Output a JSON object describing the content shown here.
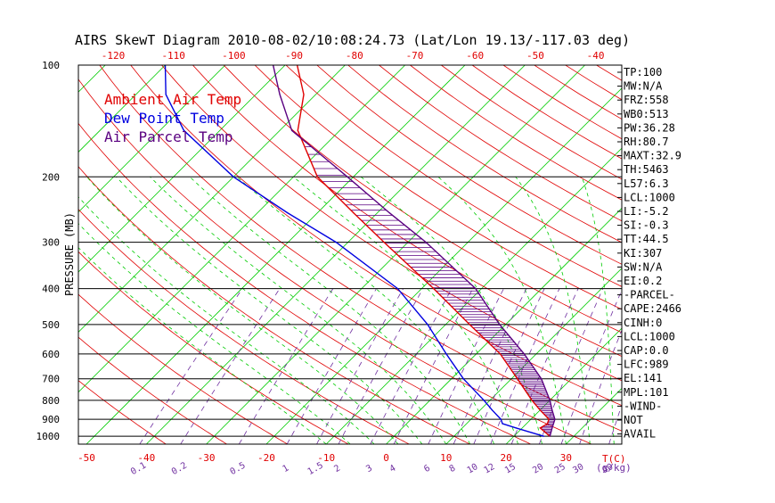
{
  "chart_data": {
    "type": "skew-t",
    "title": "AIRS SkewT Diagram 2010-08-02/10:08:24.73 (Lat/Lon 19.13/-117.03 deg)",
    "ylabel": "PRESSURE (MB)",
    "top_temp_ticks": [
      "-120",
      "-110",
      "-100",
      "-90",
      "-80",
      "-70",
      "-60",
      "-50",
      "-40"
    ],
    "bottom_temp_ticks": [
      "-50",
      "-40",
      "-30",
      "-20",
      "-10",
      "0",
      "10",
      "20",
      "30"
    ],
    "bottom_temp_unit": "T(C)",
    "mixing_ratio_ticks": [
      "0.1",
      "0.2",
      "0.5",
      "1",
      "1.5",
      "2",
      "3",
      "4",
      "6",
      "8",
      "10",
      "12",
      "15",
      "20",
      "25",
      "30",
      "40"
    ],
    "mixing_ratio_unit": "(g/kg)",
    "pressure_ticks": [
      100,
      200,
      300,
      400,
      500,
      600,
      700,
      800,
      900,
      1000
    ],
    "legend": [
      {
        "name": "Ambient Air Temp",
        "color": "#e00000"
      },
      {
        "name": "Dew Point Temp",
        "color": "#0000e0"
      },
      {
        "name": "Air Parcel Temp",
        "color": "#5a0080"
      }
    ],
    "series": [
      {
        "name": "Ambient Air Temp",
        "color": "#e00000",
        "points": [
          [
            1000,
            26
          ],
          [
            950,
            23
          ],
          [
            925,
            23.5
          ],
          [
            900,
            23
          ],
          [
            850,
            20
          ],
          [
            800,
            17
          ],
          [
            700,
            11
          ],
          [
            600,
            4
          ],
          [
            500,
            -6
          ],
          [
            400,
            -18
          ],
          [
            300,
            -34
          ],
          [
            250,
            -44
          ],
          [
            200,
            -56
          ],
          [
            150,
            -67
          ],
          [
            120,
            -72
          ],
          [
            100,
            -78
          ]
        ]
      },
      {
        "name": "Dew Point Temp",
        "color": "#0000e0",
        "points": [
          [
            1000,
            25
          ],
          [
            950,
            19
          ],
          [
            925,
            16
          ],
          [
            900,
            15
          ],
          [
            850,
            12
          ],
          [
            800,
            9
          ],
          [
            700,
            2
          ],
          [
            600,
            -5
          ],
          [
            500,
            -13
          ],
          [
            400,
            -24
          ],
          [
            300,
            -42
          ],
          [
            250,
            -55
          ],
          [
            200,
            -70
          ],
          [
            150,
            -86
          ],
          [
            120,
            -95
          ],
          [
            100,
            -100
          ]
        ]
      },
      {
        "name": "Air Parcel Temp",
        "color": "#5a0080",
        "points": [
          [
            1000,
            26
          ],
          [
            950,
            25
          ],
          [
            900,
            24
          ],
          [
            850,
            22
          ],
          [
            800,
            20
          ],
          [
            700,
            15
          ],
          [
            600,
            8
          ],
          [
            500,
            -1
          ],
          [
            400,
            -11
          ],
          [
            300,
            -27
          ],
          [
            250,
            -38
          ],
          [
            200,
            -51
          ],
          [
            150,
            -68
          ],
          [
            120,
            -76
          ],
          [
            100,
            -82
          ]
        ]
      }
    ],
    "grid": true
  },
  "indices": [
    {
      "label": "TP:100"
    },
    {
      "label": "MW:N/A"
    },
    {
      "label": "FRZ:558"
    },
    {
      "label": "WB0:513"
    },
    {
      "label": "PW:36.28"
    },
    {
      "label": "RH:80.7"
    },
    {
      "label": "MAXT:32.9"
    },
    {
      "label": "TH:5463"
    },
    {
      "label": "L57:6.3"
    },
    {
      "label": "LCL:1000"
    },
    {
      "label": "LI:-5.2"
    },
    {
      "label": "SI:-0.3"
    },
    {
      "label": "TT:44.5"
    },
    {
      "label": "KI:307"
    },
    {
      "label": "SW:N/A"
    },
    {
      "label": "EI:0.2"
    },
    {
      "label": "-PARCEL-"
    },
    {
      "label": "CAPE:2466"
    },
    {
      "label": "CINH:0"
    },
    {
      "label": "LCL:1000"
    },
    {
      "label": "CAP:0.0"
    },
    {
      "label": "LFC:989"
    },
    {
      "label": "EL:141"
    },
    {
      "label": "MPL:101"
    },
    {
      "label": "-WIND-"
    },
    {
      "label": " NOT"
    },
    {
      "label": "AVAIL"
    }
  ],
  "colors": {
    "frame": "#000000",
    "dry_adiabat": "#e00000",
    "isotherm_green": "#00cc00",
    "moist_adiabat": "#00cc00",
    "mixing_ratio": "#7030a0",
    "tick_red": "#e00000",
    "tick_purple": "#7030a0"
  }
}
